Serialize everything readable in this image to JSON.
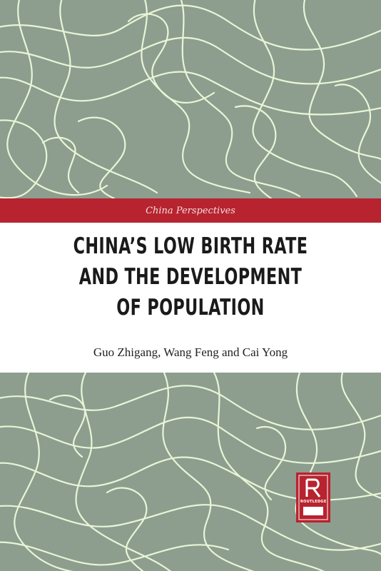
{
  "cover": {
    "series": "China Perspectives",
    "title_lines": [
      "CHINA’S LOW BIRTH RATE",
      "AND THE DEVELOPMENT",
      "OF POPULATION"
    ],
    "authors": "Guo Zhigang, Wang Feng and Cai Yong",
    "publisher": "ROUTLEDGE"
  },
  "colors": {
    "background": "#8d9e8f",
    "line_pattern": "#e8f5d6",
    "series_band": "#b7232f",
    "title_panel": "#ffffff",
    "title_text": "#1a1a1a"
  },
  "icons": {
    "publisher_logo": "routledge-r-logo"
  }
}
